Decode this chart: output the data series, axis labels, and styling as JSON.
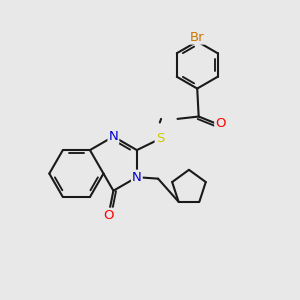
{
  "bg_color": "#e8e8e8",
  "bond_color": "#1a1a1a",
  "bond_width": 1.5,
  "atom_colors": {
    "N": "#0000cc",
    "O": "#ff0000",
    "S": "#cccc00",
    "Br": "#cc7700",
    "C": "#1a1a1a"
  },
  "font_size": 9.5,
  "figsize": [
    3.0,
    3.0
  ],
  "dpi": 100
}
